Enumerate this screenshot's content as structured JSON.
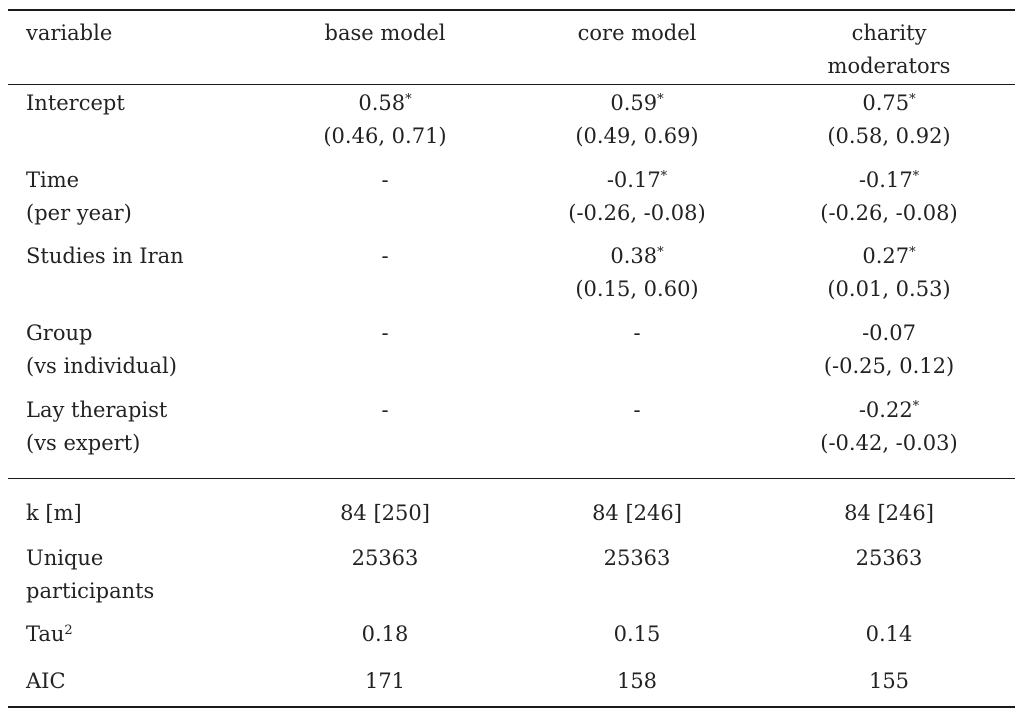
{
  "header": {
    "variable": "variable",
    "base_model": "base model",
    "core_model": "core model",
    "charity_line1": "charity",
    "charity_line2": "moderators"
  },
  "rows": [
    {
      "label": [
        "Intercept"
      ],
      "base": {
        "est": "0.58",
        "sig": "*",
        "ci": "(0.46, 0.71)"
      },
      "core": {
        "est": "0.59",
        "sig": "*",
        "ci": "(0.49, 0.69)"
      },
      "charity": {
        "est": "0.75",
        "sig": "*",
        "ci": "(0.58, 0.92)"
      }
    },
    {
      "label": [
        "Time",
        "(per year)"
      ],
      "base": {
        "est": "-"
      },
      "core": {
        "est": "-0.17",
        "sig": "*",
        "ci": "(-0.26, -0.08)"
      },
      "charity": {
        "est": "-0.17",
        "sig": "*",
        "ci": "(-0.26, -0.08)"
      }
    },
    {
      "label": [
        "Studies in Iran"
      ],
      "base": {
        "est": "-"
      },
      "core": {
        "est": "0.38",
        "sig": "*",
        "ci": "(0.15, 0.60)"
      },
      "charity": {
        "est": "0.27",
        "sig": "*",
        "ci": "(0.01, 0.53)"
      }
    },
    {
      "label": [
        "Group",
        "(vs individual)"
      ],
      "base": {
        "est": "-"
      },
      "core": {
        "est": "-"
      },
      "charity": {
        "est": "-0.07",
        "ci": "(-0.25, 0.12)"
      }
    },
    {
      "label": [
        "Lay therapist",
        "(vs expert)"
      ],
      "base": {
        "est": "-"
      },
      "core": {
        "est": "-"
      },
      "charity": {
        "est": "-0.22",
        "sig": "*",
        "ci": "(-0.42, -0.03)"
      }
    }
  ],
  "stats": [
    {
      "label": [
        "k [m]"
      ],
      "base": "84 [250]",
      "core": "84 [246]",
      "charity": "84 [246]"
    },
    {
      "label": [
        "Unique",
        "participants"
      ],
      "base": "25363",
      "core": "25363",
      "charity": "25363"
    },
    {
      "label": [
        "Tau"
      ],
      "sup": "2",
      "base": "0.18",
      "core": "0.15",
      "charity": "0.14"
    },
    {
      "label": [
        "AIC"
      ],
      "base": "171",
      "core": "158",
      "charity": "155"
    }
  ]
}
